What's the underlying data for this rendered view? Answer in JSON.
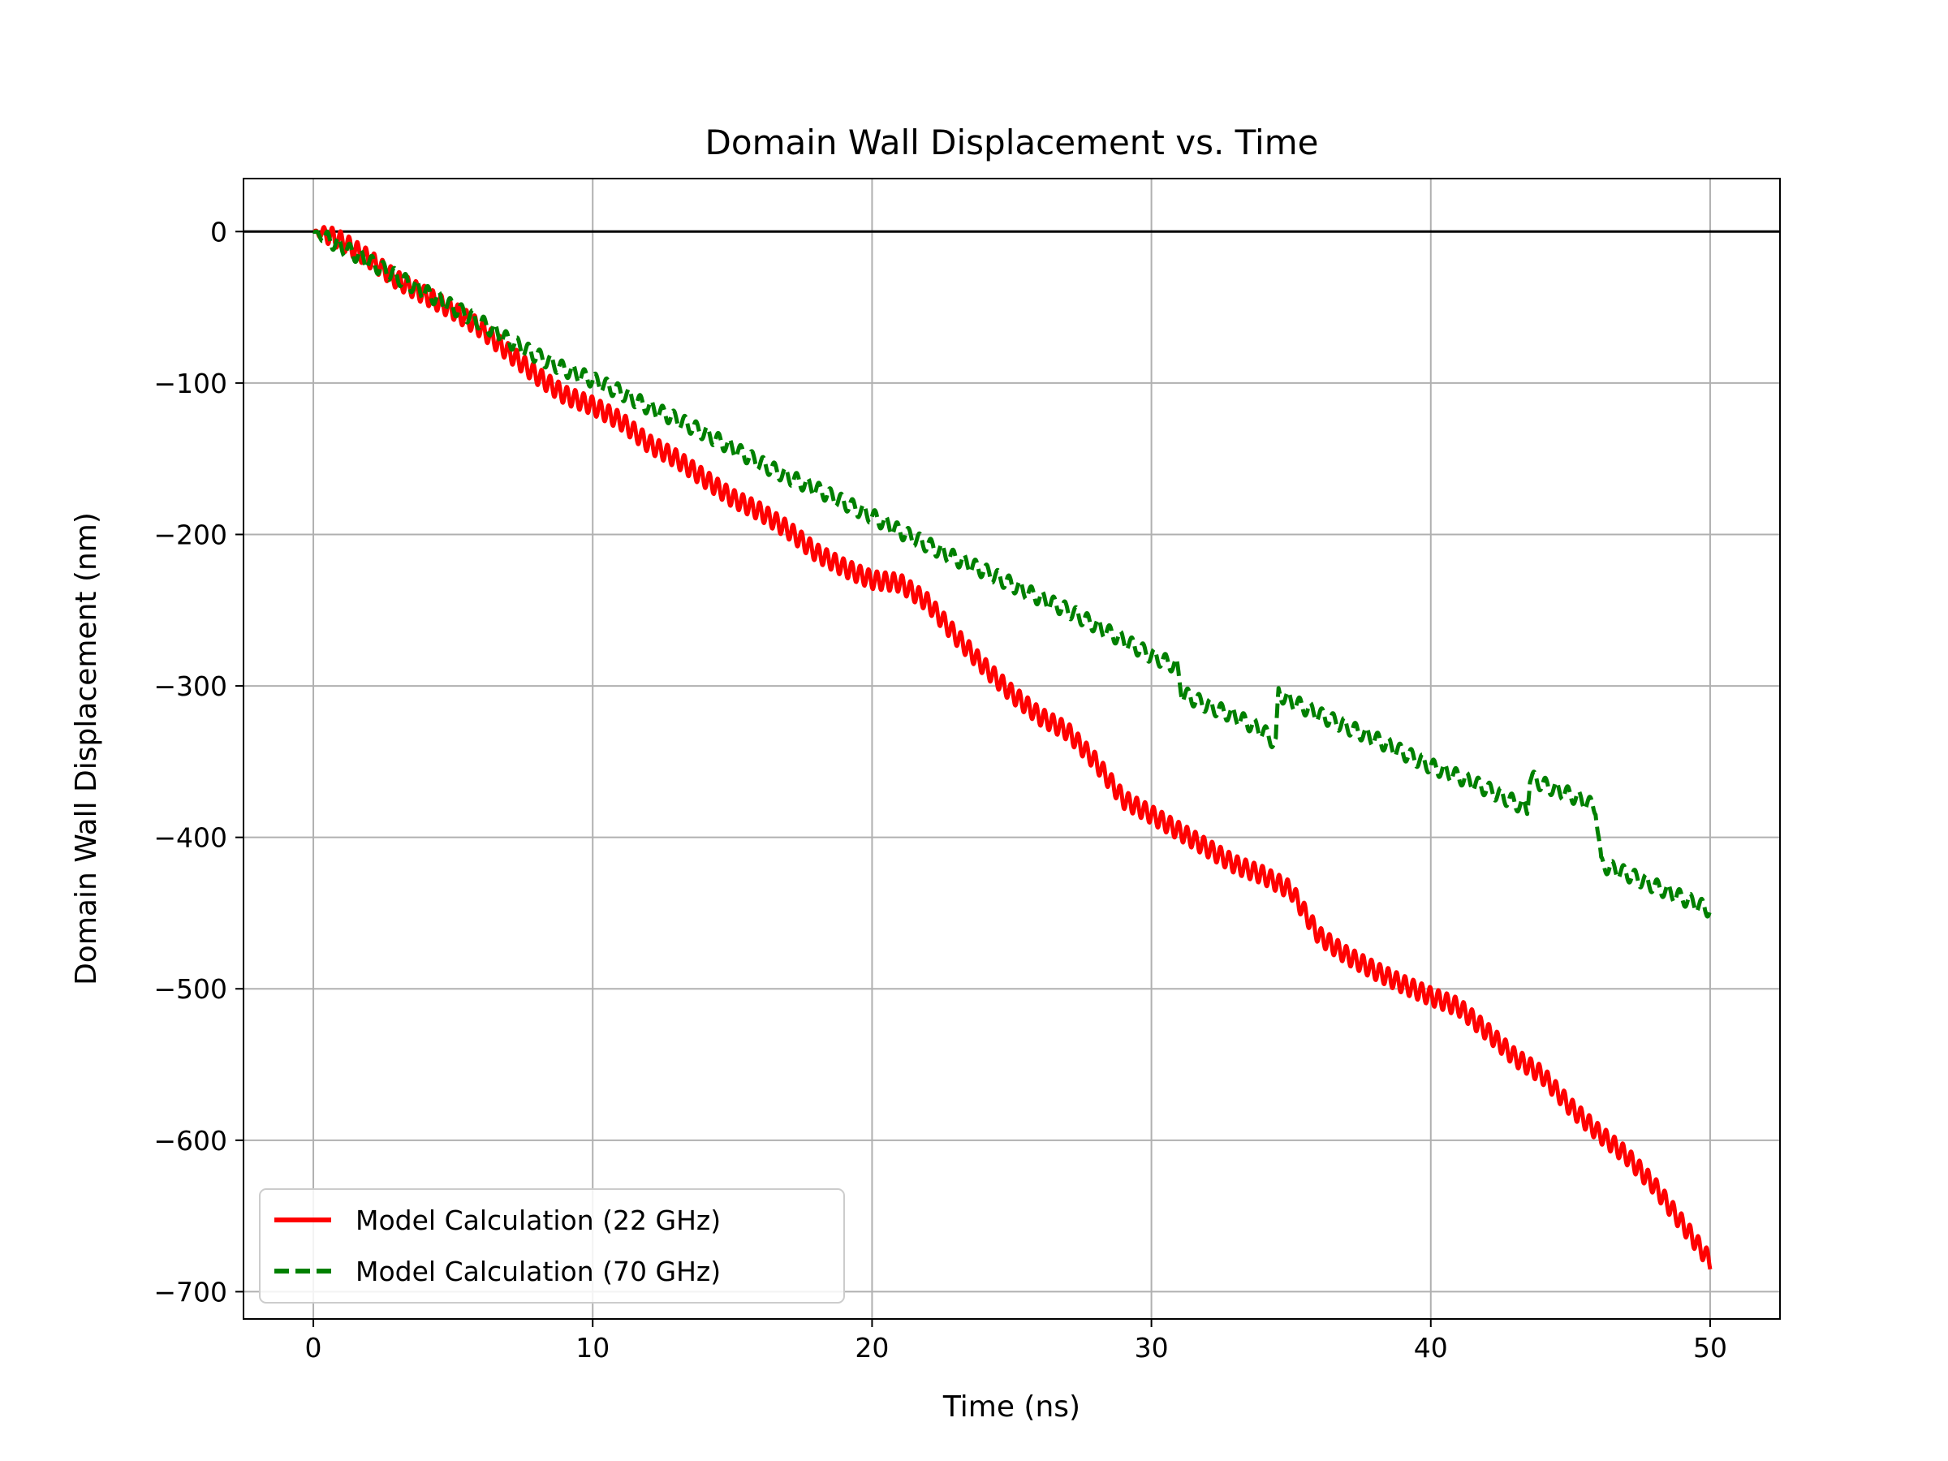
{
  "chart_data": {
    "type": "line",
    "title": "Domain Wall Displacement vs. Time",
    "xlabel": "Time (ns)",
    "ylabel": "Domain Wall Displacement (nm)",
    "xlim": [
      -2.5,
      52.5
    ],
    "ylim": [
      -718,
      35
    ],
    "xticks": [
      0,
      10,
      20,
      30,
      40,
      50
    ],
    "yticks": [
      0,
      -100,
      -200,
      -300,
      -400,
      -500,
      -600,
      -700
    ],
    "xtick_labels": [
      "0",
      "10",
      "20",
      "30",
      "40",
      "50"
    ],
    "ytick_labels": [
      "0",
      "−100",
      "−200",
      "−300",
      "−400",
      "−500",
      "−600",
      "−700"
    ],
    "grid": true,
    "reference_line_y": 0,
    "legend_position": "lower-left",
    "series": [
      {
        "name": "Model Calculation (22 GHz)",
        "color": "#ff0000",
        "style": "solid",
        "x": [
          0,
          0.5,
          1,
          2,
          3,
          4,
          5,
          6,
          7,
          8,
          9,
          10,
          11,
          12,
          13,
          14,
          15,
          16,
          17,
          18,
          19,
          20,
          21,
          22,
          23,
          24,
          25,
          26,
          27,
          28,
          29,
          30,
          31,
          32,
          33,
          34,
          35,
          36,
          37,
          38,
          39,
          40,
          41,
          42,
          43,
          44,
          45,
          46,
          47,
          48,
          49,
          50
        ],
        "y": [
          0,
          -2,
          -6,
          -18,
          -32,
          -42,
          -52,
          -64,
          -80,
          -95,
          -108,
          -115,
          -125,
          -140,
          -150,
          -163,
          -176,
          -185,
          -197,
          -212,
          -222,
          -230,
          -232,
          -245,
          -267,
          -287,
          -305,
          -320,
          -330,
          -350,
          -375,
          -385,
          -396,
          -407,
          -418,
          -425,
          -435,
          -465,
          -478,
          -488,
          -497,
          -505,
          -512,
          -528,
          -545,
          -557,
          -578,
          -595,
          -610,
          -630,
          -655,
          -680
        ],
        "amplitude": 6,
        "period": 0.3
      },
      {
        "name": "Model Calculation (70 GHz)",
        "color": "#008000",
        "style": "dashed",
        "x": [
          0,
          1,
          2,
          3,
          4,
          5,
          6,
          7,
          8,
          9,
          10,
          11,
          12,
          13,
          14,
          15,
          16,
          17,
          18,
          19,
          20,
          21,
          22,
          23,
          24,
          25,
          26,
          27,
          28,
          29,
          30,
          30.9,
          31.1,
          32,
          33,
          34,
          34.45,
          34.55,
          35,
          36,
          37,
          38,
          39,
          40,
          41,
          42,
          43,
          43.45,
          43.55,
          44,
          45,
          45.9,
          46.1,
          47,
          48,
          49,
          50
        ],
        "y": [
          0,
          -10,
          -20,
          -30,
          -40,
          -50,
          -60,
          -72,
          -82,
          -91,
          -98,
          -106,
          -116,
          -124,
          -133,
          -143,
          -153,
          -162,
          -170,
          -179,
          -188,
          -198,
          -207,
          -216,
          -224,
          -233,
          -242,
          -250,
          -260,
          -270,
          -280,
          -287,
          -305,
          -313,
          -320,
          -330,
          -338,
          -305,
          -310,
          -319,
          -327,
          -335,
          -344,
          -353,
          -360,
          -368,
          -377,
          -381,
          -360,
          -365,
          -372,
          -380,
          -418,
          -424,
          -432,
          -440,
          -448
        ],
        "amplitude": 5,
        "period": 0.4
      }
    ]
  }
}
